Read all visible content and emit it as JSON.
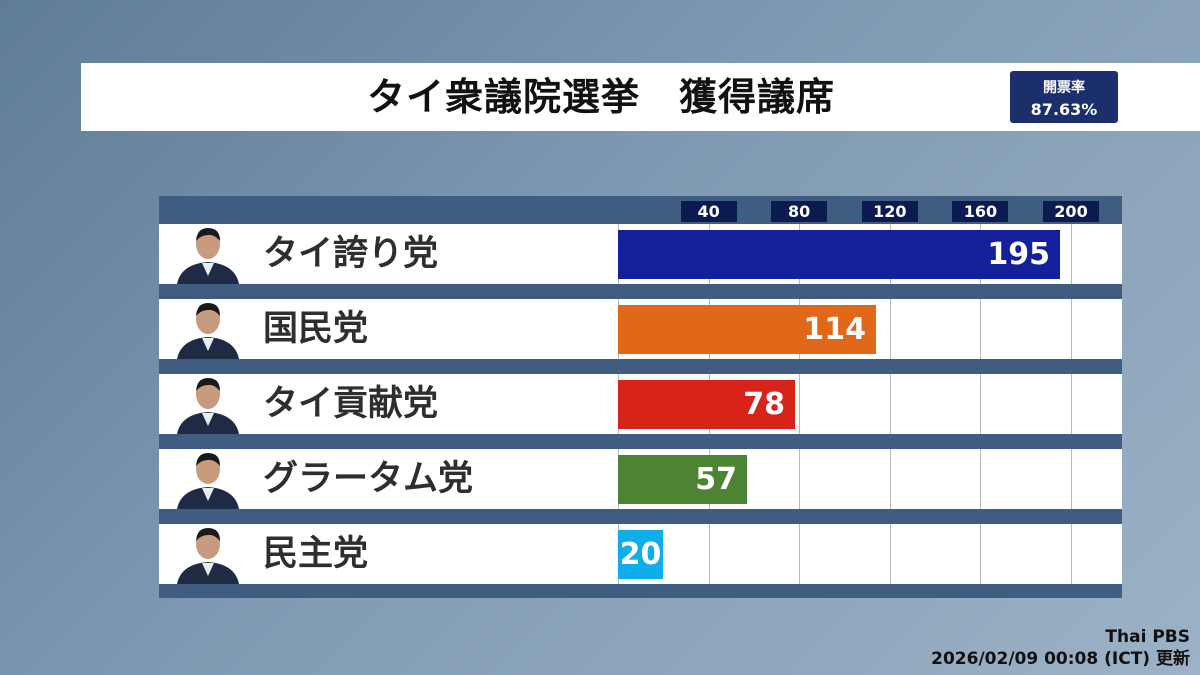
{
  "title": "タイ衆議院選挙　獲得議席",
  "badge": {
    "label": "開票率",
    "value": "87.63%"
  },
  "footer": {
    "source": "Thai PBS",
    "updated": "2026/02/09  00:08 (ICT) 更新"
  },
  "chart_data": {
    "type": "bar",
    "orientation": "horizontal",
    "title": "タイ衆議院選挙　獲得議席",
    "categories": [
      "タイ誇り党",
      "国民党",
      "タイ貢献党",
      "グラータム党",
      "民主党"
    ],
    "values": [
      195,
      114,
      78,
      57,
      20
    ],
    "colors": [
      "#141f9a",
      "#e06818",
      "#d8231b",
      "#4d8434",
      "#0daeea"
    ],
    "axis_ticks": [
      40,
      80,
      120,
      160,
      200
    ],
    "xlim": [
      0,
      212
    ],
    "grid": true,
    "legend": "none"
  }
}
